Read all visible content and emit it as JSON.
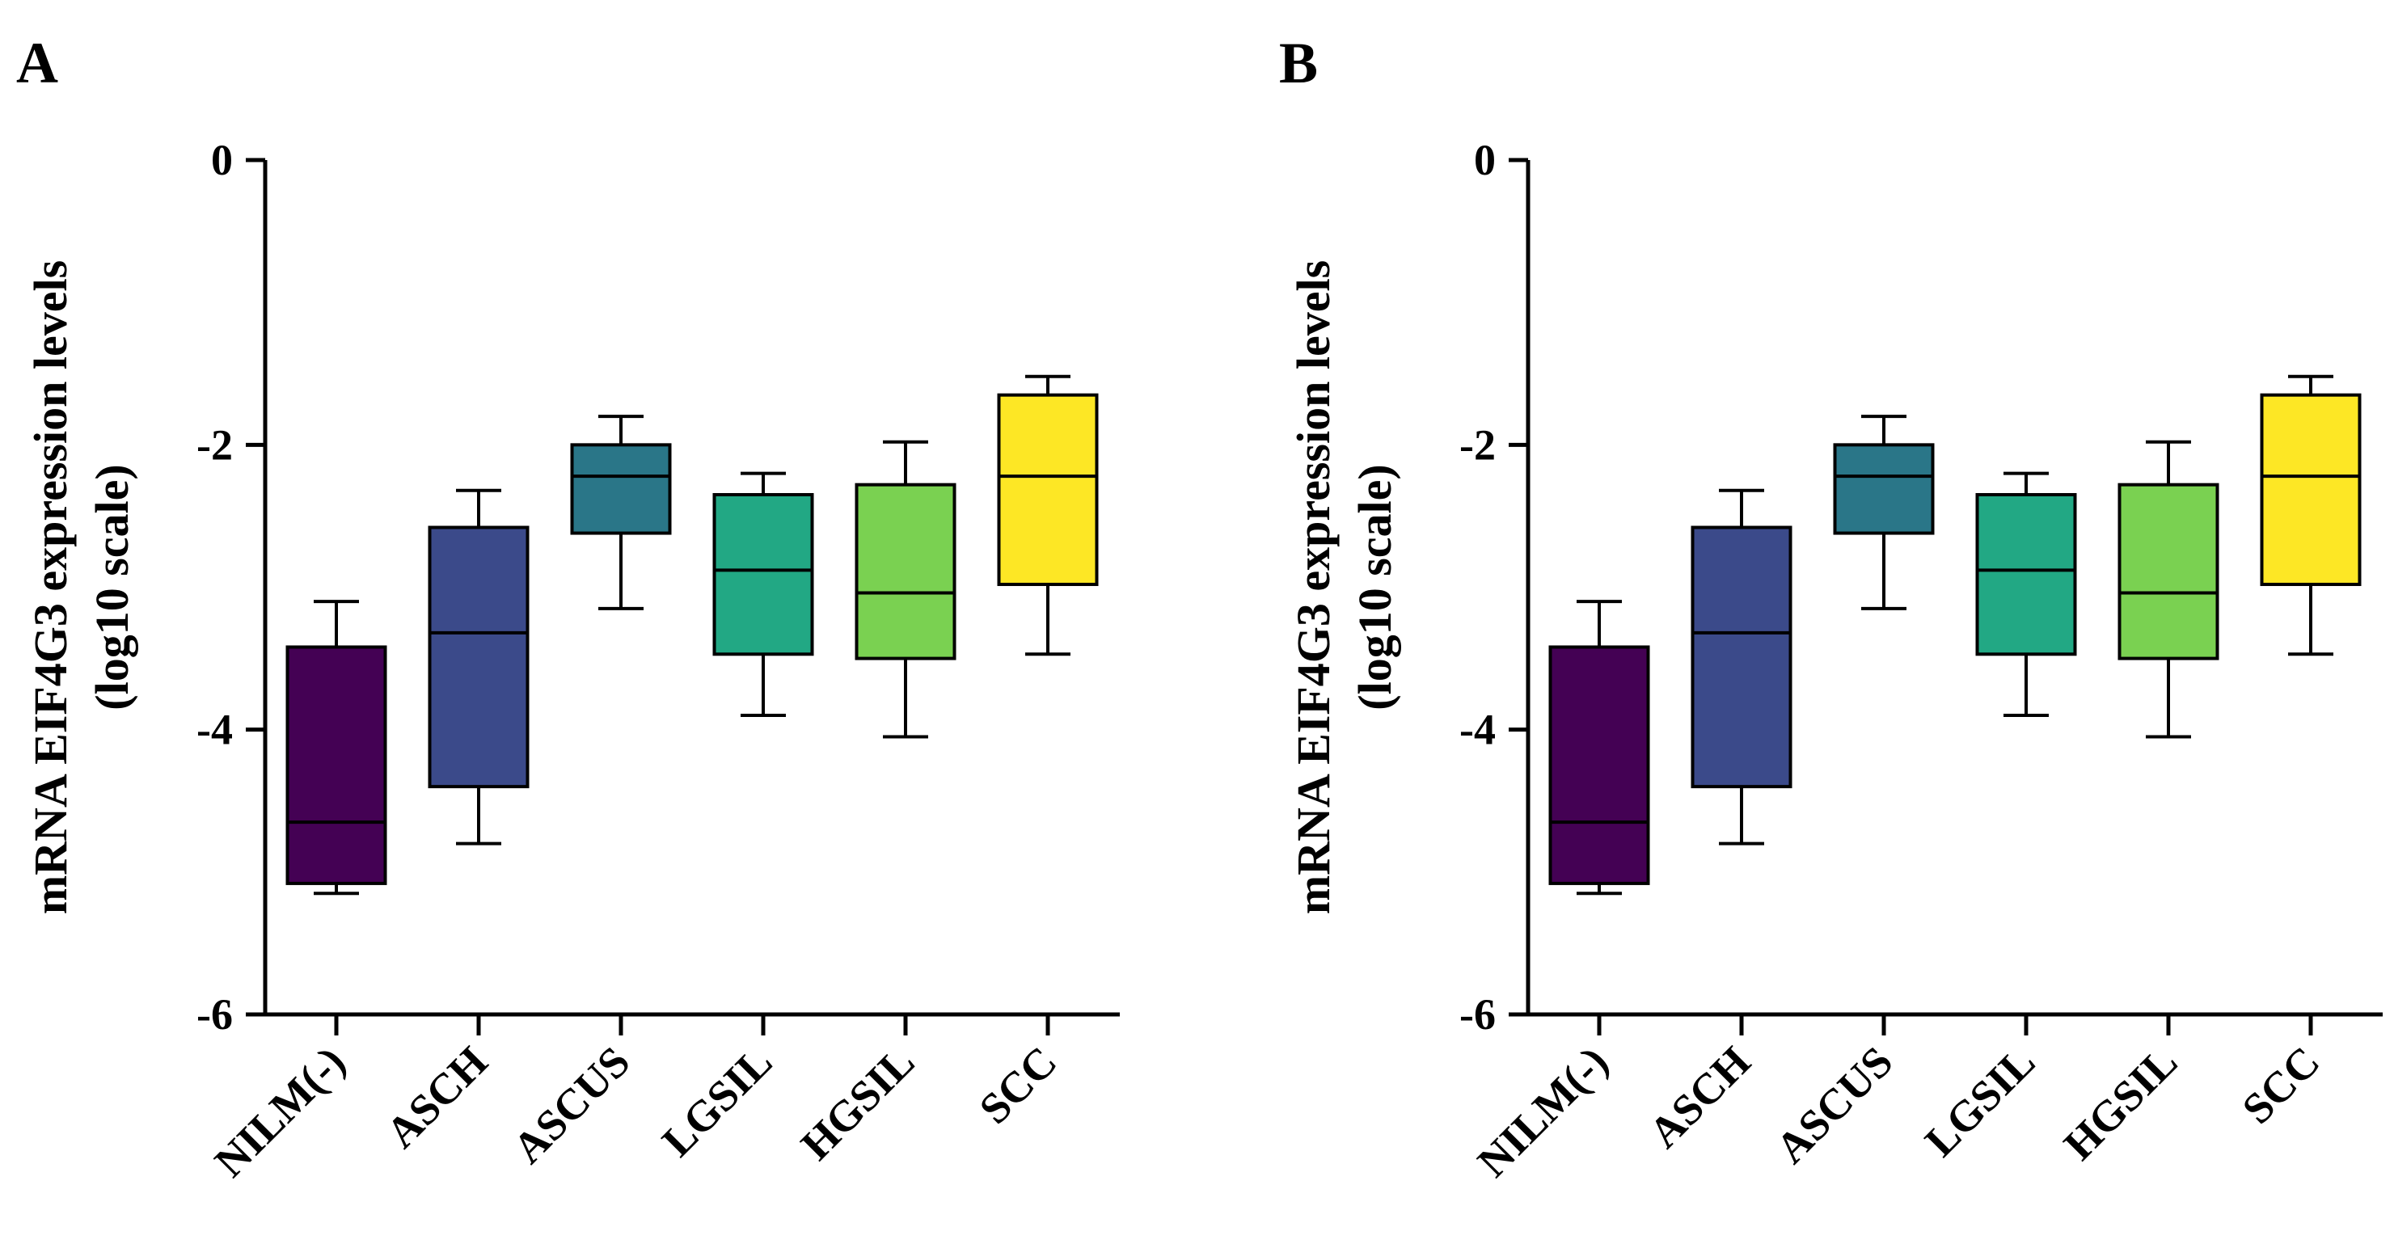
{
  "chart_data": [
    {
      "type": "box",
      "panel_label": "A",
      "ylabel_lines": [
        "mRNA EIF4G3 expression levels",
        "(log10 scale)"
      ],
      "ylim": [
        -6,
        0
      ],
      "yticks": [
        0,
        -2,
        -4,
        -6
      ],
      "ytick_labels": [
        "0",
        "-2",
        "-4",
        "-6"
      ],
      "categories": [
        "NILM(-)",
        "ASCH",
        "ASCUS",
        "LGSIL",
        "HGSIL",
        "SCC"
      ],
      "colors": [
        "#440154",
        "#3b4a8a",
        "#2a7688",
        "#22a884",
        "#7ad151",
        "#fde725"
      ],
      "boxes": [
        {
          "min": -5.15,
          "q1": -5.08,
          "median": -4.65,
          "q3": -3.42,
          "max": -3.1
        },
        {
          "min": -4.8,
          "q1": -4.4,
          "median": -3.32,
          "q3": -2.58,
          "max": -2.32
        },
        {
          "min": -3.15,
          "q1": -2.62,
          "median": -2.22,
          "q3": -2.0,
          "max": -1.8
        },
        {
          "min": -3.9,
          "q1": -3.47,
          "median": -2.88,
          "q3": -2.35,
          "max": -2.2
        },
        {
          "min": -4.05,
          "q1": -3.5,
          "median": -3.04,
          "q3": -2.28,
          "max": -1.98
        },
        {
          "min": -3.47,
          "q1": -2.98,
          "median": -2.22,
          "q3": -1.65,
          "max": -1.52
        }
      ]
    },
    {
      "type": "box",
      "panel_label": "B",
      "ylabel_lines": [
        "mRNA EIF4G3 expression levels",
        "(log10 scale)"
      ],
      "ylim": [
        -6,
        0
      ],
      "yticks": [
        0,
        -2,
        -4,
        -6
      ],
      "ytick_labels": [
        "0",
        "-2",
        "-4",
        "-6"
      ],
      "categories": [
        "NILM(-)",
        "ASCH",
        "ASCUS",
        "LGSIL",
        "HGSIL",
        "SCC"
      ],
      "colors": [
        "#440154",
        "#3b4a8a",
        "#2a7688",
        "#22a884",
        "#7ad151",
        "#fde725"
      ],
      "boxes": [
        {
          "min": -5.15,
          "q1": -5.08,
          "median": -4.65,
          "q3": -3.42,
          "max": -3.1
        },
        {
          "min": -4.8,
          "q1": -4.4,
          "median": -3.32,
          "q3": -2.58,
          "max": -2.32
        },
        {
          "min": -3.15,
          "q1": -2.62,
          "median": -2.22,
          "q3": -2.0,
          "max": -1.8
        },
        {
          "min": -3.9,
          "q1": -3.47,
          "median": -2.88,
          "q3": -2.35,
          "max": -2.2
        },
        {
          "min": -4.05,
          "q1": -3.5,
          "median": -3.04,
          "q3": -2.28,
          "max": -1.98
        },
        {
          "min": -3.47,
          "q1": -2.98,
          "median": -2.22,
          "q3": -1.65,
          "max": -1.52
        }
      ]
    }
  ]
}
